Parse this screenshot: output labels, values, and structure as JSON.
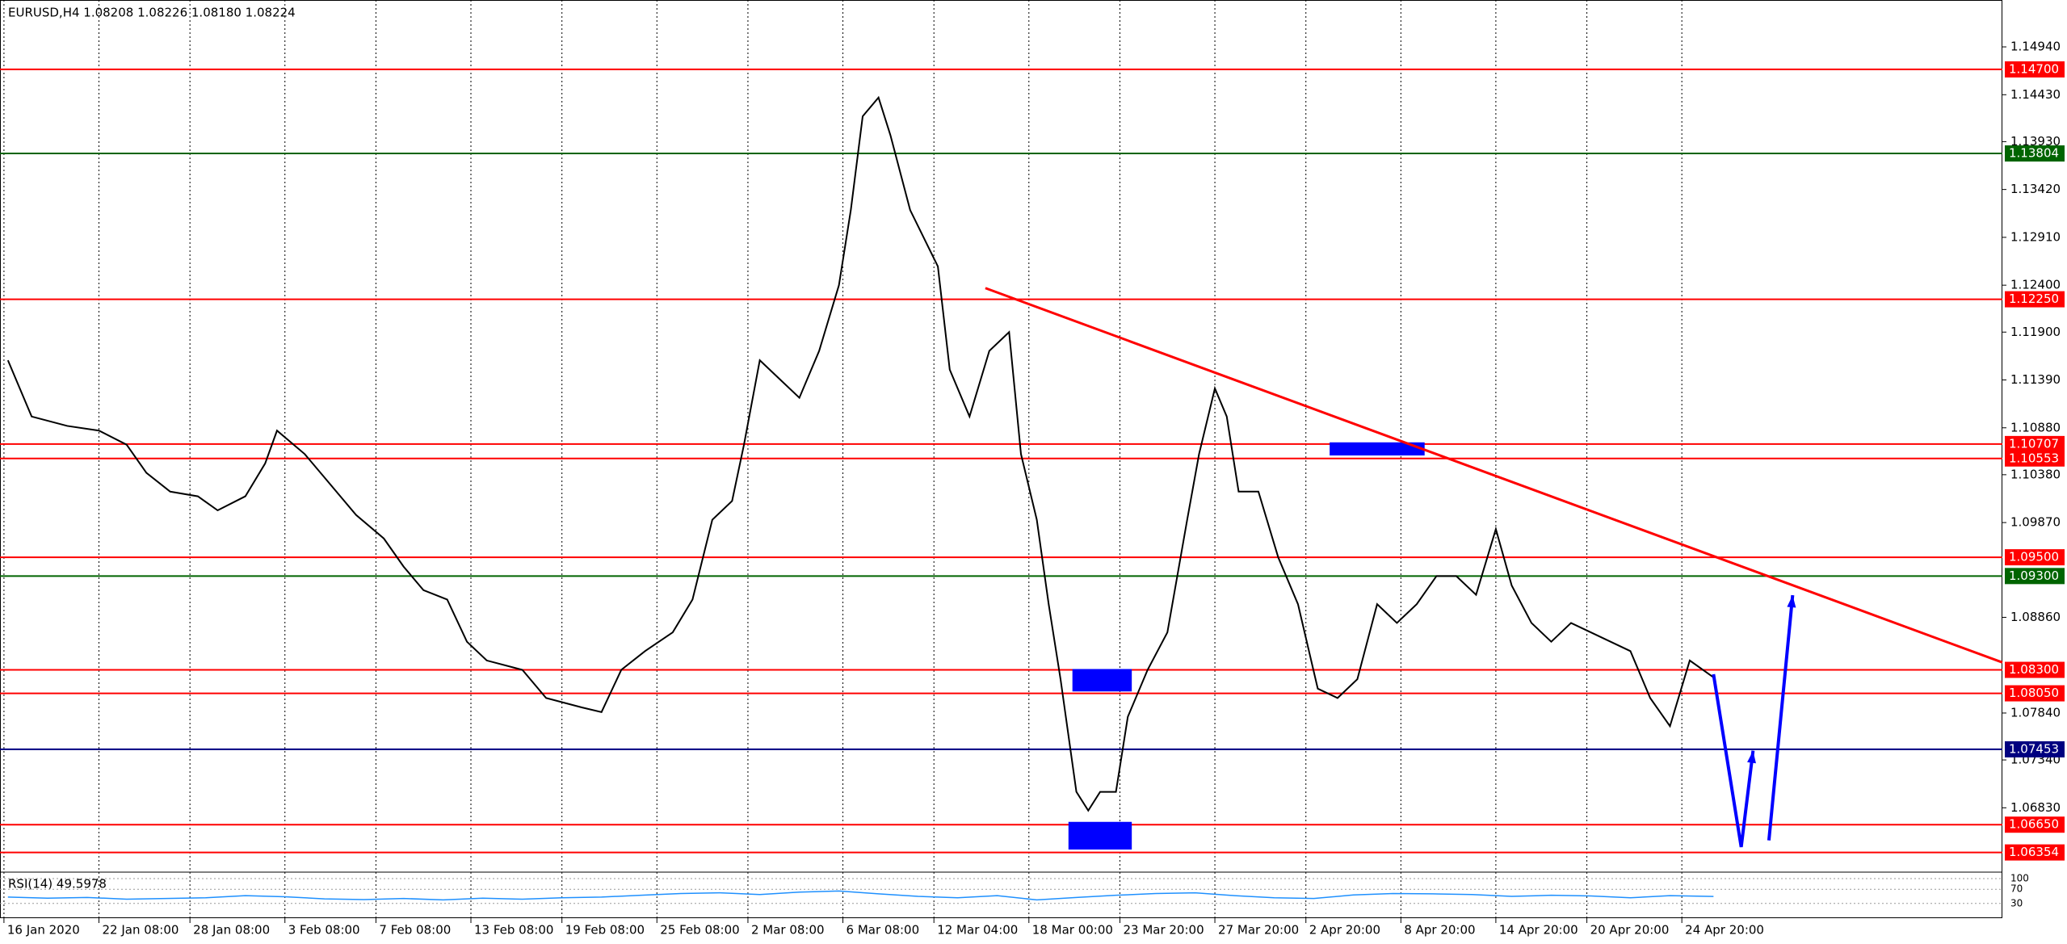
{
  "chart_data": {
    "type": "line",
    "title": "EURUSD,H4  1.08208 1.08226 1.08180 1.08224",
    "color": "#000000",
    "grid": true,
    "x": [
      2,
      8,
      17,
      25,
      32,
      37,
      43,
      50,
      55,
      62,
      67,
      70,
      77,
      83,
      90,
      97,
      102,
      107,
      113,
      118,
      123,
      132,
      138,
      147,
      152,
      157,
      163,
      170,
      175,
      180,
      185,
      188,
      192,
      197,
      202,
      207,
      212,
      215,
      218,
      222,
      225,
      230,
      237,
      240,
      245,
      250,
      255,
      258,
      262,
      265,
      268,
      272,
      275,
      278,
      282,
      285,
      290,
      295,
      300,
      303,
      307,
      310,
      313,
      318,
      323,
      328,
      333,
      338,
      343,
      348,
      353,
      358,
      363,
      368,
      373,
      378,
      382,
      387,
      392,
      397,
      402,
      407,
      412,
      417,
      422,
      427,
      433
    ],
    "values": [
      1.116,
      1.11,
      1.109,
      1.1085,
      1.107,
      1.104,
      1.102,
      1.1015,
      1.1,
      1.1015,
      1.105,
      1.1085,
      1.106,
      1.103,
      1.0995,
      1.097,
      1.094,
      1.0915,
      1.0905,
      1.086,
      1.084,
      1.083,
      1.08,
      1.079,
      1.0785,
      1.083,
      1.085,
      1.087,
      1.0905,
      1.099,
      1.101,
      1.107,
      1.116,
      1.114,
      1.112,
      1.117,
      1.124,
      1.132,
      1.142,
      1.144,
      1.14,
      1.132,
      1.126,
      1.115,
      1.11,
      1.117,
      1.119,
      1.106,
      1.099,
      1.09,
      1.082,
      1.07,
      1.068,
      1.07,
      1.07,
      1.078,
      1.083,
      1.087,
      1.099,
      1.106,
      1.113,
      1.11,
      1.102,
      1.102,
      1.095,
      1.09,
      1.081,
      1.08,
      1.082,
      1.09,
      1.088,
      1.09,
      1.093,
      1.093,
      1.091,
      1.098,
      1.092,
      1.088,
      1.086,
      1.088,
      1.087,
      1.086,
      1.085,
      1.08,
      1.077,
      1.084,
      1.0822
    ],
    "xlim": [
      0,
      506
    ],
    "ylim": [
      1.0617,
      1.1519
    ],
    "xticks": [
      {
        "value": 1,
        "label": "16 Jan 2020"
      },
      {
        "value": 25,
        "label": "22 Jan 08:00"
      },
      {
        "value": 48,
        "label": "28 Jan 08:00"
      },
      {
        "value": 72,
        "label": "3 Feb 08:00"
      },
      {
        "value": 95,
        "label": "7 Feb 08:00"
      },
      {
        "value": 119,
        "label": "13 Feb 08:00"
      },
      {
        "value": 142,
        "label": "19 Feb 08:00"
      },
      {
        "value": 166,
        "label": "25 Feb 08:00"
      },
      {
        "value": 189,
        "label": "2 Mar 08:00"
      },
      {
        "value": 213,
        "label": "6 Mar 08:00"
      },
      {
        "value": 236,
        "label": "12 Mar 04:00"
      },
      {
        "value": 260,
        "label": "18 Mar 00:00"
      },
      {
        "value": 283,
        "label": "23 Mar 20:00"
      },
      {
        "value": 307,
        "label": "27 Mar 20:00"
      },
      {
        "value": 330,
        "label": "2 Apr 20:00"
      },
      {
        "value": 354,
        "label": "8 Apr 20:00"
      },
      {
        "value": 378,
        "label": "14 Apr 20:00"
      },
      {
        "value": 401,
        "label": "20 Apr 20:00"
      },
      {
        "value": 425,
        "label": "24 Apr 20:00"
      }
    ],
    "yticks": [
      {
        "value": 1.1494,
        "label": "1.14940"
      },
      {
        "value": 1.1443,
        "label": "1.14430"
      },
      {
        "value": 1.1393,
        "label": "1.13930"
      },
      {
        "value": 1.1342,
        "label": "1.13420"
      },
      {
        "value": 1.1291,
        "label": "1.12910"
      },
      {
        "value": 1.124,
        "label": "1.12400"
      },
      {
        "value": 1.119,
        "label": "1.11900"
      },
      {
        "value": 1.1139,
        "label": "1.11390"
      },
      {
        "value": 1.1088,
        "label": "1.10880"
      },
      {
        "value": 1.1038,
        "label": "1.10380"
      },
      {
        "value": 1.0987,
        "label": "1.09870"
      },
      {
        "value": 1.0886,
        "label": "1.08860"
      },
      {
        "value": 1.0784,
        "label": "1.07840"
      },
      {
        "value": 1.0734,
        "label": "1.07340"
      },
      {
        "value": 1.0683,
        "label": "1.06830"
      }
    ],
    "levels": [
      {
        "value": 1.147,
        "label": "1.14700",
        "color": "#ff0000"
      },
      {
        "value": 1.13804,
        "label": "1.13804",
        "color": "#006400"
      },
      {
        "value": 1.1225,
        "label": "1.12250",
        "color": "#ff0000"
      },
      {
        "value": 1.10707,
        "label": "1.10707",
        "color": "#ff0000"
      },
      {
        "value": 1.10553,
        "label": "1.10553",
        "color": "#ff0000"
      },
      {
        "value": 1.095,
        "label": "1.09500",
        "color": "#ff0000"
      },
      {
        "value": 1.093,
        "label": "1.09300",
        "color": "#006400"
      },
      {
        "value": 1.083,
        "label": "1.08300",
        "color": "#ff0000"
      },
      {
        "value": 1.0805,
        "label": "1.08050",
        "color": "#ff0000"
      },
      {
        "value": 1.07453,
        "label": "1.07453",
        "color": "#000080"
      },
      {
        "value": 1.0665,
        "label": "1.06650",
        "color": "#ff0000"
      },
      {
        "value": 1.06354,
        "label": "1.06354",
        "color": "#ff0000"
      }
    ],
    "trendline": {
      "x": [
        249,
        506
      ],
      "values": [
        1.12369,
        1.08379
      ],
      "color": "#ff0000"
    },
    "zones": [
      {
        "x": [
          336,
          360
        ],
        "values": [
          1.10725,
          1.10585
        ]
      },
      {
        "x": [
          271,
          286
        ],
        "values": [
          1.08309,
          1.0807
        ]
      },
      {
        "x": [
          270,
          286
        ],
        "values": [
          1.0668,
          1.06385
        ]
      }
    ],
    "zone_color": "#0000ff",
    "arrows": [
      {
        "x": [
          433,
          440,
          443
        ],
        "values": [
          1.08253,
          1.06412,
          1.07438
        ]
      },
      {
        "x": [
          447,
          453
        ],
        "values": [
          1.06483,
          1.09096
        ]
      }
    ],
    "arrow_color": "#0000ff",
    "rsi": {
      "title": "RSI(14) 49.5978",
      "color": "#1e90ff",
      "ylim": [
        0,
        100
      ],
      "yticks": [
        100,
        70,
        30
      ],
      "x": [
        2,
        12,
        22,
        32,
        42,
        52,
        62,
        72,
        82,
        92,
        102,
        112,
        122,
        132,
        142,
        152,
        162,
        172,
        182,
        192,
        202,
        212,
        222,
        232,
        242,
        252,
        262,
        272,
        282,
        292,
        302,
        312,
        322,
        332,
        342,
        352,
        362,
        372,
        382,
        392,
        402,
        412,
        422,
        433
      ],
      "values": [
        48,
        45,
        47,
        42,
        44,
        46,
        52,
        49,
        43,
        41,
        44,
        40,
        45,
        42,
        46,
        48,
        53,
        58,
        60,
        55,
        62,
        65,
        57,
        50,
        46,
        52,
        40,
        47,
        53,
        58,
        60,
        52,
        46,
        44,
        54,
        58,
        57,
        55,
        50,
        53,
        51,
        46,
        52,
        49.5978
      ]
    }
  }
}
